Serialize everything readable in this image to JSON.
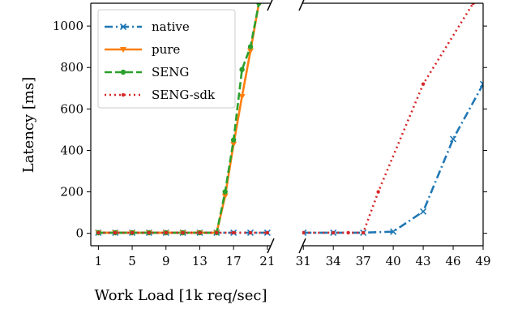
{
  "chart_data": {
    "type": "line",
    "ylabel": "Latency [ms]",
    "xlabel": "Work Load [1k req/sec]",
    "ylim": [
      -60,
      1110
    ],
    "y_ticks": [
      0,
      200,
      400,
      600,
      800,
      1000
    ],
    "panels": [
      {
        "id": "left",
        "xlim": [
          0.1,
          21.4
        ],
        "x_ticks": [
          1,
          5,
          9,
          13,
          17,
          21
        ]
      },
      {
        "id": "right",
        "xlim": [
          30.9,
          49
        ],
        "x_ticks": [
          31,
          34,
          37,
          40,
          43,
          46,
          49
        ]
      }
    ],
    "legend_position": "top-left",
    "series": [
      {
        "name": "native",
        "color": "#1f77b4",
        "linestyle": "dashdot",
        "marker": "x",
        "points": [
          [
            1,
            3
          ],
          [
            3,
            3
          ],
          [
            5,
            3
          ],
          [
            7,
            3
          ],
          [
            9,
            3
          ],
          [
            11,
            3
          ],
          [
            13,
            3
          ],
          [
            15,
            3
          ],
          [
            17,
            3
          ],
          [
            19,
            3
          ],
          [
            21,
            3
          ],
          [
            31,
            3
          ],
          [
            34,
            3
          ],
          [
            37,
            3
          ],
          [
            40,
            8
          ],
          [
            43,
            105
          ],
          [
            46,
            455
          ],
          [
            49,
            720
          ]
        ]
      },
      {
        "name": "pure",
        "color": "#ff7f0e",
        "linestyle": "solid",
        "marker": "v",
        "points": [
          [
            1,
            3
          ],
          [
            3,
            3
          ],
          [
            5,
            3
          ],
          [
            7,
            3
          ],
          [
            9,
            3
          ],
          [
            11,
            3
          ],
          [
            13,
            3
          ],
          [
            15,
            3
          ],
          [
            16,
            180
          ],
          [
            17,
            430
          ],
          [
            18,
            660
          ],
          [
            19,
            880
          ],
          [
            20,
            1110
          ]
        ]
      },
      {
        "name": "SENG",
        "color": "#2ca02c",
        "linestyle": "dashed",
        "marker": "o",
        "points": [
          [
            1,
            3
          ],
          [
            3,
            3
          ],
          [
            5,
            3
          ],
          [
            7,
            3
          ],
          [
            9,
            3
          ],
          [
            11,
            3
          ],
          [
            13,
            3
          ],
          [
            15,
            3
          ],
          [
            16,
            200
          ],
          [
            17,
            450
          ],
          [
            18,
            790
          ],
          [
            19,
            900
          ],
          [
            20,
            1110
          ]
        ]
      },
      {
        "name": "SENG-sdk",
        "color": "#d62728",
        "linestyle": "dotted",
        "marker": ".",
        "points": [
          [
            1,
            3
          ],
          [
            3,
            3
          ],
          [
            5,
            3
          ],
          [
            7,
            3
          ],
          [
            9,
            3
          ],
          [
            11,
            3
          ],
          [
            13,
            3
          ],
          [
            15,
            3
          ],
          [
            17,
            3
          ],
          [
            19,
            3
          ],
          [
            21,
            3
          ],
          [
            31,
            3
          ],
          [
            34,
            3
          ],
          [
            35.5,
            3
          ],
          [
            37,
            3
          ],
          [
            38.5,
            200
          ],
          [
            43,
            720
          ],
          [
            48,
            1110
          ]
        ]
      }
    ]
  }
}
